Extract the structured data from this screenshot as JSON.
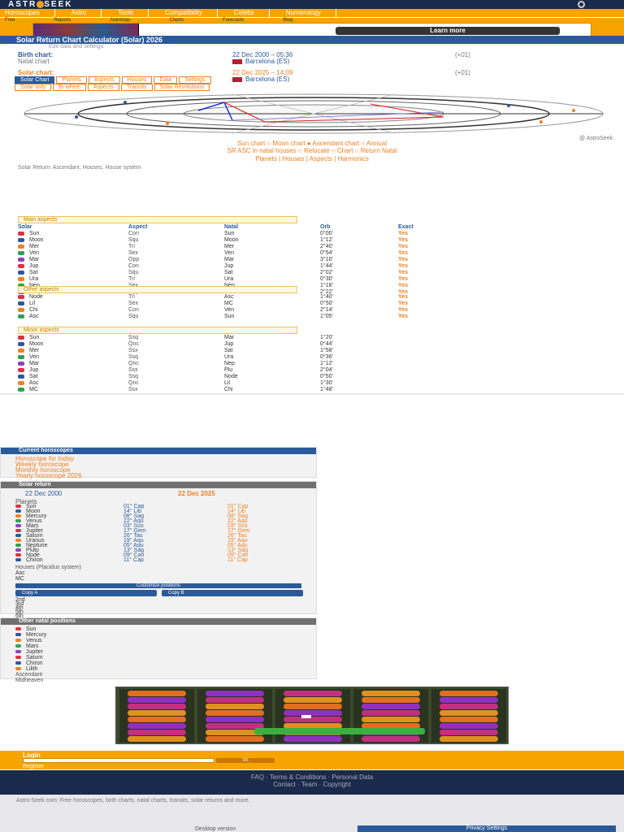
{
  "header": {
    "logo_left": "ASTR",
    "logo_right": "SEEK"
  },
  "nav": {
    "row1": [
      "Horoscopes",
      "Astro",
      "Tools",
      "Compatibility",
      "Celebs",
      "Numerology"
    ],
    "row2": [
      "Free",
      "Reports",
      "Astrology",
      "Charts",
      "Forecasts",
      "Blog"
    ]
  },
  "ad": {
    "button_label": "Learn more"
  },
  "main": {
    "title": "Solar Return Chart Calculator (Solar) 2026",
    "subtitle": "Edit data and settings",
    "birth_label": "Birth chart:",
    "birth_date": "22 Dec 2000 – 05:36",
    "birth_place": "Barcelona (ES)",
    "birth_offset": "(+01)",
    "solar_label": "Solar chart:",
    "solar_date": "22 Dec 2025 – 14:09",
    "solar_place": "Barcelona (ES)",
    "solar_offset": "(+01)",
    "natal_note": "Natal chart",
    "tabs": [
      "Solar Chart",
      "Planets",
      "Aspects",
      "Houses",
      "Data",
      "Settings"
    ],
    "tabs2": [
      "Solar only",
      "Bi-wheel",
      "Aspects",
      "Transits",
      "Solar Revolutions"
    ],
    "credit": "@ AstroSeek",
    "caption1": "Sun chart ○ Moon chart ● Ascendant chart ○ Annual",
    "caption2": "SR ASC in natal houses ○ Relocate ○ Chart ○ Return Natal",
    "caption3": "Planets | Houses | Aspects | Harmonics",
    "legend": "Solar Return: Ascendant, Houses, House system"
  },
  "aspects_main": {
    "header": "Main aspects",
    "cols": [
      "Solar",
      "Aspect",
      "Natal",
      "Orb",
      "Exact"
    ],
    "rows": [
      [
        "Sun",
        "Con",
        "Sun",
        "0°00'",
        "Yes"
      ],
      [
        "Moon",
        "Squ",
        "Moon",
        "1°12'",
        "Yes"
      ],
      [
        "Mer",
        "Tri",
        "Mer",
        "2°40'",
        "Yes"
      ],
      [
        "Ven",
        "Sex",
        "Ven",
        "0°54'",
        "Yes"
      ],
      [
        "Mar",
        "Opp",
        "Mar",
        "3°10'",
        "Yes"
      ],
      [
        "Jup",
        "Con",
        "Jup",
        "1°44'",
        "Yes"
      ],
      [
        "Sat",
        "Squ",
        "Sat",
        "2°02'",
        "Yes"
      ],
      [
        "Ura",
        "Tri",
        "Ura",
        "0°30'",
        "Yes"
      ],
      [
        "Nep",
        "Sex",
        "Nep",
        "1°18'",
        "Yes"
      ],
      [
        "Plu",
        "Opp",
        "Plu",
        "2°22'",
        "Yes"
      ]
    ]
  },
  "aspects_other": {
    "header": "Other aspects",
    "rows": [
      [
        "Node",
        "Tri",
        "Asc",
        "1°40'",
        "Yes"
      ],
      [
        "Lil",
        "Sex",
        "MC",
        "0°50'",
        "Yes"
      ],
      [
        "Chi",
        "Con",
        "Ven",
        "2°14'",
        "Yes"
      ],
      [
        "Asc",
        "Squ",
        "Sun",
        "1°05'",
        "Yes"
      ]
    ]
  },
  "aspects_minor": {
    "header": "Minor aspects",
    "rows": [
      [
        "Sun",
        "Ssq",
        "Mar",
        "1°20'"
      ],
      [
        "Moon",
        "Qnc",
        "Jup",
        "0°44'"
      ],
      [
        "Mer",
        "Ssx",
        "Sat",
        "1°58'"
      ],
      [
        "Ven",
        "Ssq",
        "Ura",
        "0°36'"
      ],
      [
        "Mar",
        "Qnc",
        "Nep",
        "1°12'"
      ],
      [
        "Jup",
        "Ssx",
        "Plu",
        "2°04'"
      ],
      [
        "Sat",
        "Ssq",
        "Node",
        "0°50'"
      ],
      [
        "Asc",
        "Qnc",
        "Lil",
        "1°30'"
      ],
      [
        "MC",
        "Ssx",
        "Chi",
        "1°48'"
      ]
    ]
  },
  "current_panel": {
    "header": "Current horoscopes",
    "lines": [
      "Horoscope for today",
      "Weekly horoscope",
      "Monthly horoscope",
      "Yearly horoscope 2026"
    ]
  },
  "solar_panel": {
    "header": "Solar return",
    "natal_date": "22 Dec 2000",
    "solar_date": "22 Dec 2025",
    "planets_label": "Planets",
    "planets": [
      [
        "Sun",
        "01°",
        "Cap"
      ],
      [
        "Moon",
        "14°",
        "Lib"
      ],
      [
        "Mercury",
        "08°",
        "Sag"
      ],
      [
        "Venus",
        "22°",
        "Aqu"
      ],
      [
        "Mars",
        "03°",
        "Sco"
      ],
      [
        "Jupiter",
        "17°",
        "Gem"
      ],
      [
        "Saturn",
        "26°",
        "Tau"
      ],
      [
        "Uranus",
        "19°",
        "Aqu"
      ],
      [
        "Neptune",
        "05°",
        "Aqu"
      ],
      [
        "Pluto",
        "13°",
        "Sag"
      ],
      [
        "Node",
        "09°",
        "Can"
      ],
      [
        "Chiron",
        "11°",
        "Cap"
      ]
    ],
    "houses_label": "Houses (Placidus system)",
    "asc": "Asc",
    "mc": "MC",
    "copy_a": "Copy A",
    "copy_b": "Copy B",
    "custom": "Customize positions",
    "houses": [
      "2nd",
      "3rd",
      "4th",
      "5th",
      "6th",
      "8th",
      "9th",
      "11th",
      "12th"
    ]
  },
  "other_panel": {
    "header": "Other natal positions",
    "rows": [
      "Sun",
      "Mercury",
      "Venus",
      "Mars",
      "Jupiter",
      "Saturn",
      "Chiron",
      "Lilith"
    ],
    "footer_left": "Ascendant",
    "footer_right": "Midheaven"
  },
  "login": {
    "label": "Login",
    "register": "Register",
    "go": "OK"
  },
  "footer": {
    "line1": "FAQ · Terms & Conditions · Personal Data",
    "line2": "Contact · Team · Copyright"
  },
  "bottom": {
    "text": "Astro-Seek.com: Free horoscopes, birth charts, natal charts, transits, solar returns and more.",
    "desktop": "Desktop version",
    "privacy": "Privacy Settings"
  }
}
